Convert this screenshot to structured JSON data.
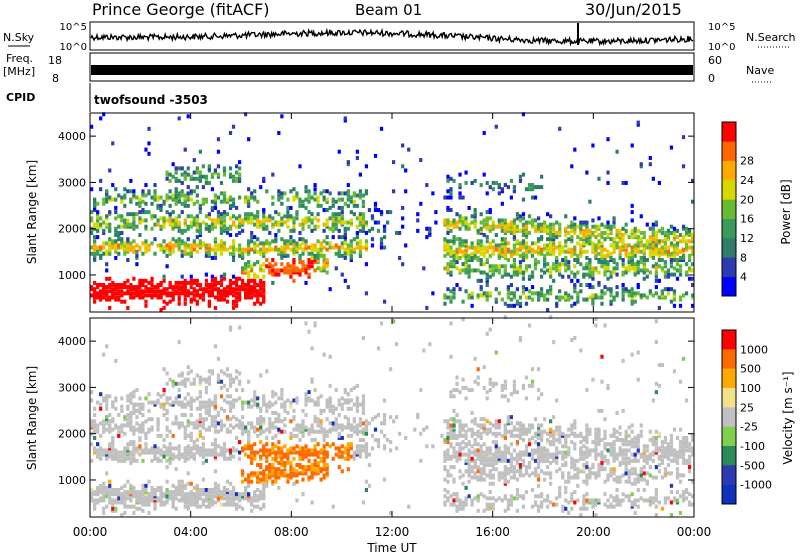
{
  "header": {
    "station": "Prince George (fitACF)",
    "beam": "Beam 01",
    "date": "30/Jun/2015"
  },
  "strips": {
    "nsky": {
      "label": "N.Sky",
      "ticks": [
        "10^5",
        "10^0"
      ],
      "right_label": "N.Search",
      "right_ticks": [
        "10^5",
        "10^0"
      ]
    },
    "freq": {
      "label_line1": "Freq.",
      "label_line2": "[MHz]",
      "ticks": [
        "18",
        "8"
      ],
      "right_label": "Nave",
      "right_ticks": [
        "60",
        "0"
      ]
    },
    "cpid": {
      "label": "CPID",
      "program": "twofsound -3503"
    }
  },
  "colors": {
    "power": [
      "#0000ff",
      "#2c3cb0",
      "#2e7d6a",
      "#3a9a5a",
      "#66bb33",
      "#d8d800",
      "#ffaa00",
      "#ff6600",
      "#ff0000"
    ],
    "velocity": [
      "#ff0000",
      "#ff6a00",
      "#ffaa00",
      "#f3e08a",
      "#c0c0c0",
      "#7fd04f",
      "#2c8a56",
      "#2c3cb0",
      "#1030c0"
    ]
  },
  "chart_data": [
    {
      "type": "heatmap",
      "title": "Power",
      "ylabel": "Slant Range [km]",
      "yticks": [
        "1000",
        "2000",
        "3000",
        "4000"
      ],
      "ylim": [
        200,
        4500
      ],
      "colorbar": {
        "label": "Power [dB]",
        "ticks": [
          "4",
          "8",
          "12",
          "16",
          "20",
          "24",
          "28"
        ]
      }
    },
    {
      "type": "heatmap",
      "title": "Velocity",
      "ylabel": "Slant Range [km]",
      "yticks": [
        "1000",
        "2000",
        "3000",
        "4000"
      ],
      "ylim": [
        200,
        4500
      ],
      "colorbar": {
        "label": "Velocity [m s⁻¹]",
        "ticks": [
          "1000",
          "500",
          "100",
          "25",
          "-25",
          "-100",
          "-500",
          "-1000"
        ]
      }
    }
  ],
  "xaxis": {
    "label": "Time UT",
    "ticks": [
      "00:00",
      "04:00",
      "08:00",
      "12:00",
      "16:00",
      "20:00",
      "00:00"
    ]
  }
}
